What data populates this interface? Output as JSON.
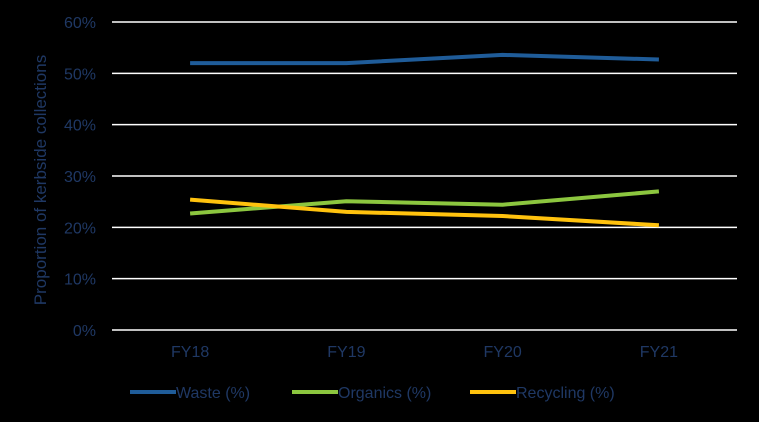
{
  "chart_data": {
    "type": "line",
    "title": "",
    "xlabel": "",
    "ylabel": "Proportion of kerbside collections",
    "categories": [
      "FY18",
      "FY19",
      "FY20",
      "FY21"
    ],
    "ylim": [
      0,
      60
    ],
    "yticks": [
      0,
      10,
      20,
      30,
      40,
      50,
      60
    ],
    "ytick_labels": [
      "0%",
      "10%",
      "20%",
      "30%",
      "40%",
      "50%",
      "60%"
    ],
    "grid": true,
    "legend_position": "bottom",
    "series": [
      {
        "name": "Waste (%)",
        "color": "#1F5C99",
        "values": [
          52.0,
          52.0,
          53.6,
          52.7
        ]
      },
      {
        "name": "Organics (%)",
        "color": "#8CC63F",
        "values": [
          22.7,
          25.1,
          24.4,
          27.0
        ]
      },
      {
        "name": "Recycling (%)",
        "color": "#FFC20E",
        "values": [
          25.4,
          23.0,
          22.2,
          20.4
        ]
      }
    ],
    "colors": {
      "background": "#000000",
      "gridline": "#FFFFFF",
      "text": "#1F3864"
    }
  }
}
